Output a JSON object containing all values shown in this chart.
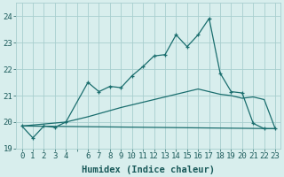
{
  "xlabel": "Humidex (Indice chaleur)",
  "ylabel": "",
  "bg_color": "#d8eeed",
  "grid_color": "#a8cece",
  "line_color": "#1a6e6e",
  "xlim": [
    -0.5,
    23.5
  ],
  "ylim": [
    19.0,
    24.5
  ],
  "yticks": [
    19,
    20,
    21,
    22,
    23,
    24
  ],
  "xtick_positions": [
    0,
    1,
    2,
    3,
    4,
    5,
    6,
    7,
    8,
    9,
    10,
    11,
    12,
    13,
    14,
    15,
    16,
    17,
    18,
    19,
    20,
    21,
    22,
    23
  ],
  "xtick_labels": [
    "0",
    "1",
    "2",
    "3",
    "4",
    "",
    "6",
    "7",
    "8",
    "9",
    "10",
    "11",
    "12",
    "13",
    "14",
    "15",
    "16",
    "17",
    "18",
    "19",
    "20",
    "21",
    "22",
    "23"
  ],
  "curve1_x": [
    0,
    1,
    2,
    3,
    4,
    6,
    7,
    8,
    9,
    10,
    11,
    12,
    13,
    14,
    15,
    16,
    17,
    18,
    19,
    20,
    21,
    22,
    23
  ],
  "curve1_y": [
    19.85,
    19.4,
    19.85,
    19.8,
    20.0,
    21.5,
    21.15,
    21.35,
    21.3,
    21.75,
    22.1,
    22.5,
    22.55,
    23.3,
    22.85,
    23.3,
    23.92,
    21.85,
    21.15,
    21.1,
    19.95,
    19.75,
    19.75
  ],
  "curve2_x": [
    0,
    4,
    6,
    9,
    10,
    11,
    12,
    13,
    14,
    15,
    16,
    17,
    18,
    19,
    20,
    21,
    22,
    23
  ],
  "curve2_y": [
    19.85,
    20.0,
    20.2,
    20.55,
    20.65,
    20.75,
    20.85,
    20.95,
    21.05,
    21.15,
    21.25,
    21.15,
    21.05,
    21.0,
    20.9,
    20.95,
    20.85,
    19.75
  ],
  "curve3_x": [
    0,
    23
  ],
  "curve3_y": [
    19.85,
    19.75
  ],
  "font_color": "#1a5a5a",
  "axis_fontsize": 7.5,
  "tick_fontsize": 6.5
}
